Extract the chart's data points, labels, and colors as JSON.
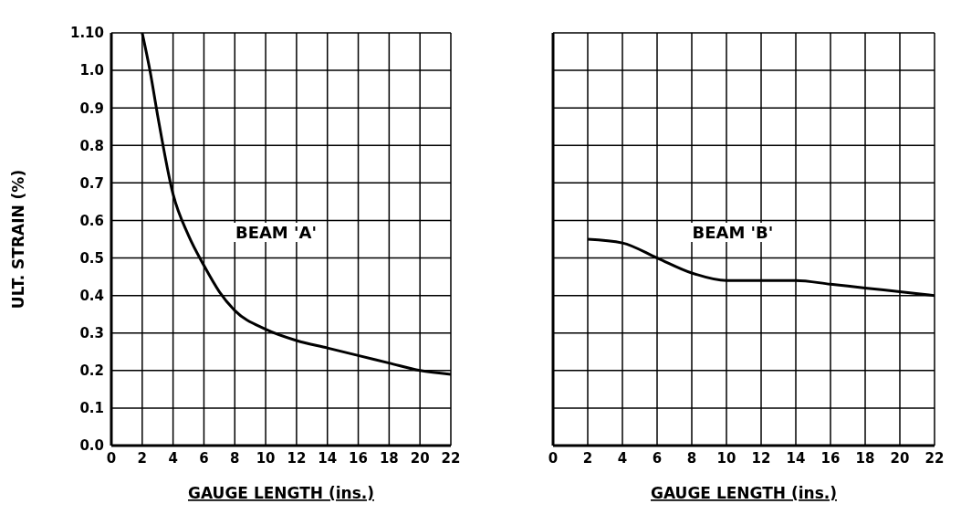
{
  "chart_data": [
    {
      "type": "line",
      "ylabel": "ULT. STRAIN (%)",
      "xlabel": "GAUGE LENGTH (ins.)",
      "annotations": [
        "BEAM 'A'"
      ],
      "x": [
        2,
        2.5,
        3,
        4,
        5,
        6,
        7,
        8,
        10,
        12,
        14,
        16,
        18,
        20,
        22
      ],
      "series": [
        {
          "color": "#000000",
          "values": [
            1.1,
            1.0,
            0.88,
            0.67,
            0.56,
            0.48,
            0.41,
            0.36,
            0.31,
            0.28,
            0.26,
            0.24,
            0.22,
            0.2,
            0.19
          ]
        }
      ],
      "xlim": [
        0,
        22
      ],
      "xticks": [
        0,
        2,
        4,
        6,
        8,
        10,
        12,
        14,
        16,
        18,
        20,
        22
      ],
      "ylim": [
        0,
        1.1
      ],
      "yticks": [
        {
          "value": 0,
          "label": "0.0"
        },
        0.1,
        0.2,
        0.3,
        0.4,
        0.5,
        0.6,
        0.7,
        0.8,
        0.9,
        {
          "value": 1.0,
          "label": "1.0"
        },
        {
          "value": 1.1,
          "label": "1.10"
        }
      ],
      "grid": true,
      "legend": false,
      "marker": "none",
      "line_style": "solid"
    },
    {
      "type": "line",
      "xlabel": "GAUGE LENGTH (ins.)",
      "annotations": [
        "BEAM 'B'"
      ],
      "x": [
        2,
        4,
        6,
        8,
        10,
        12,
        14,
        16,
        18,
        20,
        22
      ],
      "series": [
        {
          "color": "#000000",
          "values": [
            0.55,
            0.54,
            0.5,
            0.46,
            0.44,
            0.44,
            0.44,
            0.43,
            0.42,
            0.41,
            0.4
          ]
        }
      ],
      "xlim": [
        0,
        22
      ],
      "xticks": [
        0,
        2,
        4,
        6,
        8,
        10,
        12,
        14,
        16,
        18,
        20,
        22
      ],
      "ylim": [
        0,
        1.1
      ],
      "yticks": [
        0,
        0.1,
        0.2,
        0.3,
        0.4,
        0.5,
        0.6,
        0.7,
        0.8,
        0.9,
        1.0,
        1.1
      ],
      "tick_labels": "x",
      "grid": true,
      "legend": false,
      "marker": "none",
      "line_style": "solid"
    }
  ]
}
